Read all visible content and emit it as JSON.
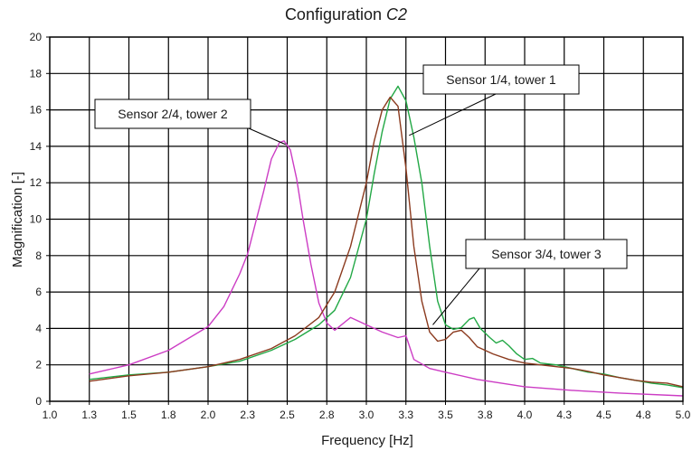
{
  "chart_data": {
    "type": "line",
    "title": "Configuration",
    "title_suffix": "C2",
    "xlabel": "Frequency [Hz]",
    "ylabel": "Magnification [-]",
    "xlim": [
      1.0,
      5.0
    ],
    "ylim": [
      0,
      20
    ],
    "grid": true,
    "x_ticks": [
      "1.0",
      "1.3",
      "1.5",
      "1.8",
      "2.0",
      "2.3",
      "2.5",
      "2.8",
      "3.0",
      "3.3",
      "3.5",
      "3.8",
      "4.0",
      "4.3",
      "4.5",
      "4.8",
      "5.0"
    ],
    "y_ticks": [
      "0",
      "2",
      "4",
      "6",
      "8",
      "10",
      "12",
      "14",
      "16",
      "18",
      "20"
    ],
    "series": [
      {
        "name": "Sensor 1/4, tower 1",
        "color": "#22a845",
        "x": [
          1.25,
          1.5,
          1.75,
          2.0,
          2.2,
          2.4,
          2.55,
          2.7,
          2.8,
          2.9,
          3.0,
          3.05,
          3.1,
          3.15,
          3.2,
          3.25,
          3.3,
          3.35,
          3.4,
          3.45,
          3.5,
          3.55,
          3.6,
          3.65,
          3.68,
          3.72,
          3.78,
          3.82,
          3.86,
          3.9,
          3.95,
          4.0,
          4.05,
          4.1,
          4.2,
          4.3,
          4.4,
          4.5,
          4.6,
          4.7,
          4.8,
          4.9,
          5.0
        ],
        "y": [
          1.2,
          1.45,
          1.6,
          1.9,
          2.2,
          2.8,
          3.4,
          4.2,
          5.0,
          6.8,
          10.0,
          12.5,
          14.8,
          16.6,
          17.3,
          16.5,
          14.5,
          12.0,
          8.5,
          5.5,
          4.2,
          3.95,
          4.05,
          4.5,
          4.6,
          4.0,
          3.5,
          3.2,
          3.35,
          3.05,
          2.6,
          2.3,
          2.35,
          2.1,
          2.0,
          1.8,
          1.6,
          1.5,
          1.3,
          1.15,
          1.0,
          0.9,
          0.75
        ]
      },
      {
        "name": "Sensor 2/4, tower 2",
        "color": "#cc3cc4",
        "x": [
          1.25,
          1.5,
          1.75,
          2.0,
          2.1,
          2.2,
          2.25,
          2.3,
          2.35,
          2.4,
          2.45,
          2.48,
          2.52,
          2.56,
          2.6,
          2.65,
          2.7,
          2.75,
          2.8,
          2.9,
          3.0,
          3.1,
          3.2,
          3.25,
          3.3,
          3.4,
          3.5,
          3.7,
          4.0,
          4.3,
          4.6,
          5.0
        ],
        "y": [
          1.5,
          2.0,
          2.8,
          4.1,
          5.2,
          7.0,
          8.1,
          9.8,
          11.5,
          13.3,
          14.2,
          14.3,
          13.8,
          12.2,
          10.0,
          7.5,
          5.4,
          4.3,
          3.9,
          4.6,
          4.2,
          3.8,
          3.5,
          3.6,
          2.3,
          1.8,
          1.6,
          1.2,
          0.8,
          0.6,
          0.45,
          0.3
        ]
      },
      {
        "name": "Sensor 3/4, tower 3",
        "color": "#8b3a1e",
        "x": [
          1.25,
          1.5,
          1.75,
          2.0,
          2.2,
          2.4,
          2.55,
          2.7,
          2.8,
          2.9,
          3.0,
          3.05,
          3.1,
          3.15,
          3.2,
          3.25,
          3.3,
          3.35,
          3.4,
          3.45,
          3.5,
          3.55,
          3.6,
          3.65,
          3.7,
          3.8,
          3.9,
          4.0,
          4.1,
          4.2,
          4.3,
          4.4,
          4.5,
          4.6,
          4.7,
          4.8,
          4.9,
          5.0
        ],
        "y": [
          1.1,
          1.4,
          1.6,
          1.9,
          2.3,
          2.9,
          3.6,
          4.6,
          6.0,
          8.5,
          12.0,
          14.3,
          16.0,
          16.7,
          16.2,
          12.8,
          8.5,
          5.5,
          3.8,
          3.3,
          3.4,
          3.8,
          3.9,
          3.5,
          3.0,
          2.6,
          2.3,
          2.1,
          2.0,
          1.9,
          1.8,
          1.65,
          1.45,
          1.3,
          1.15,
          1.05,
          1.0,
          0.8
        ]
      }
    ],
    "annotations": [
      {
        "text": "Sensor 1/4, tower 1",
        "target_x": 3.27,
        "target_y": 14.6
      },
      {
        "text": "Sensor 2/4, tower 2",
        "target_x": 2.49,
        "target_y": 14.1
      },
      {
        "text": "Sensor 3/4, tower 3",
        "target_x": 3.42,
        "target_y": 4.2
      }
    ]
  }
}
